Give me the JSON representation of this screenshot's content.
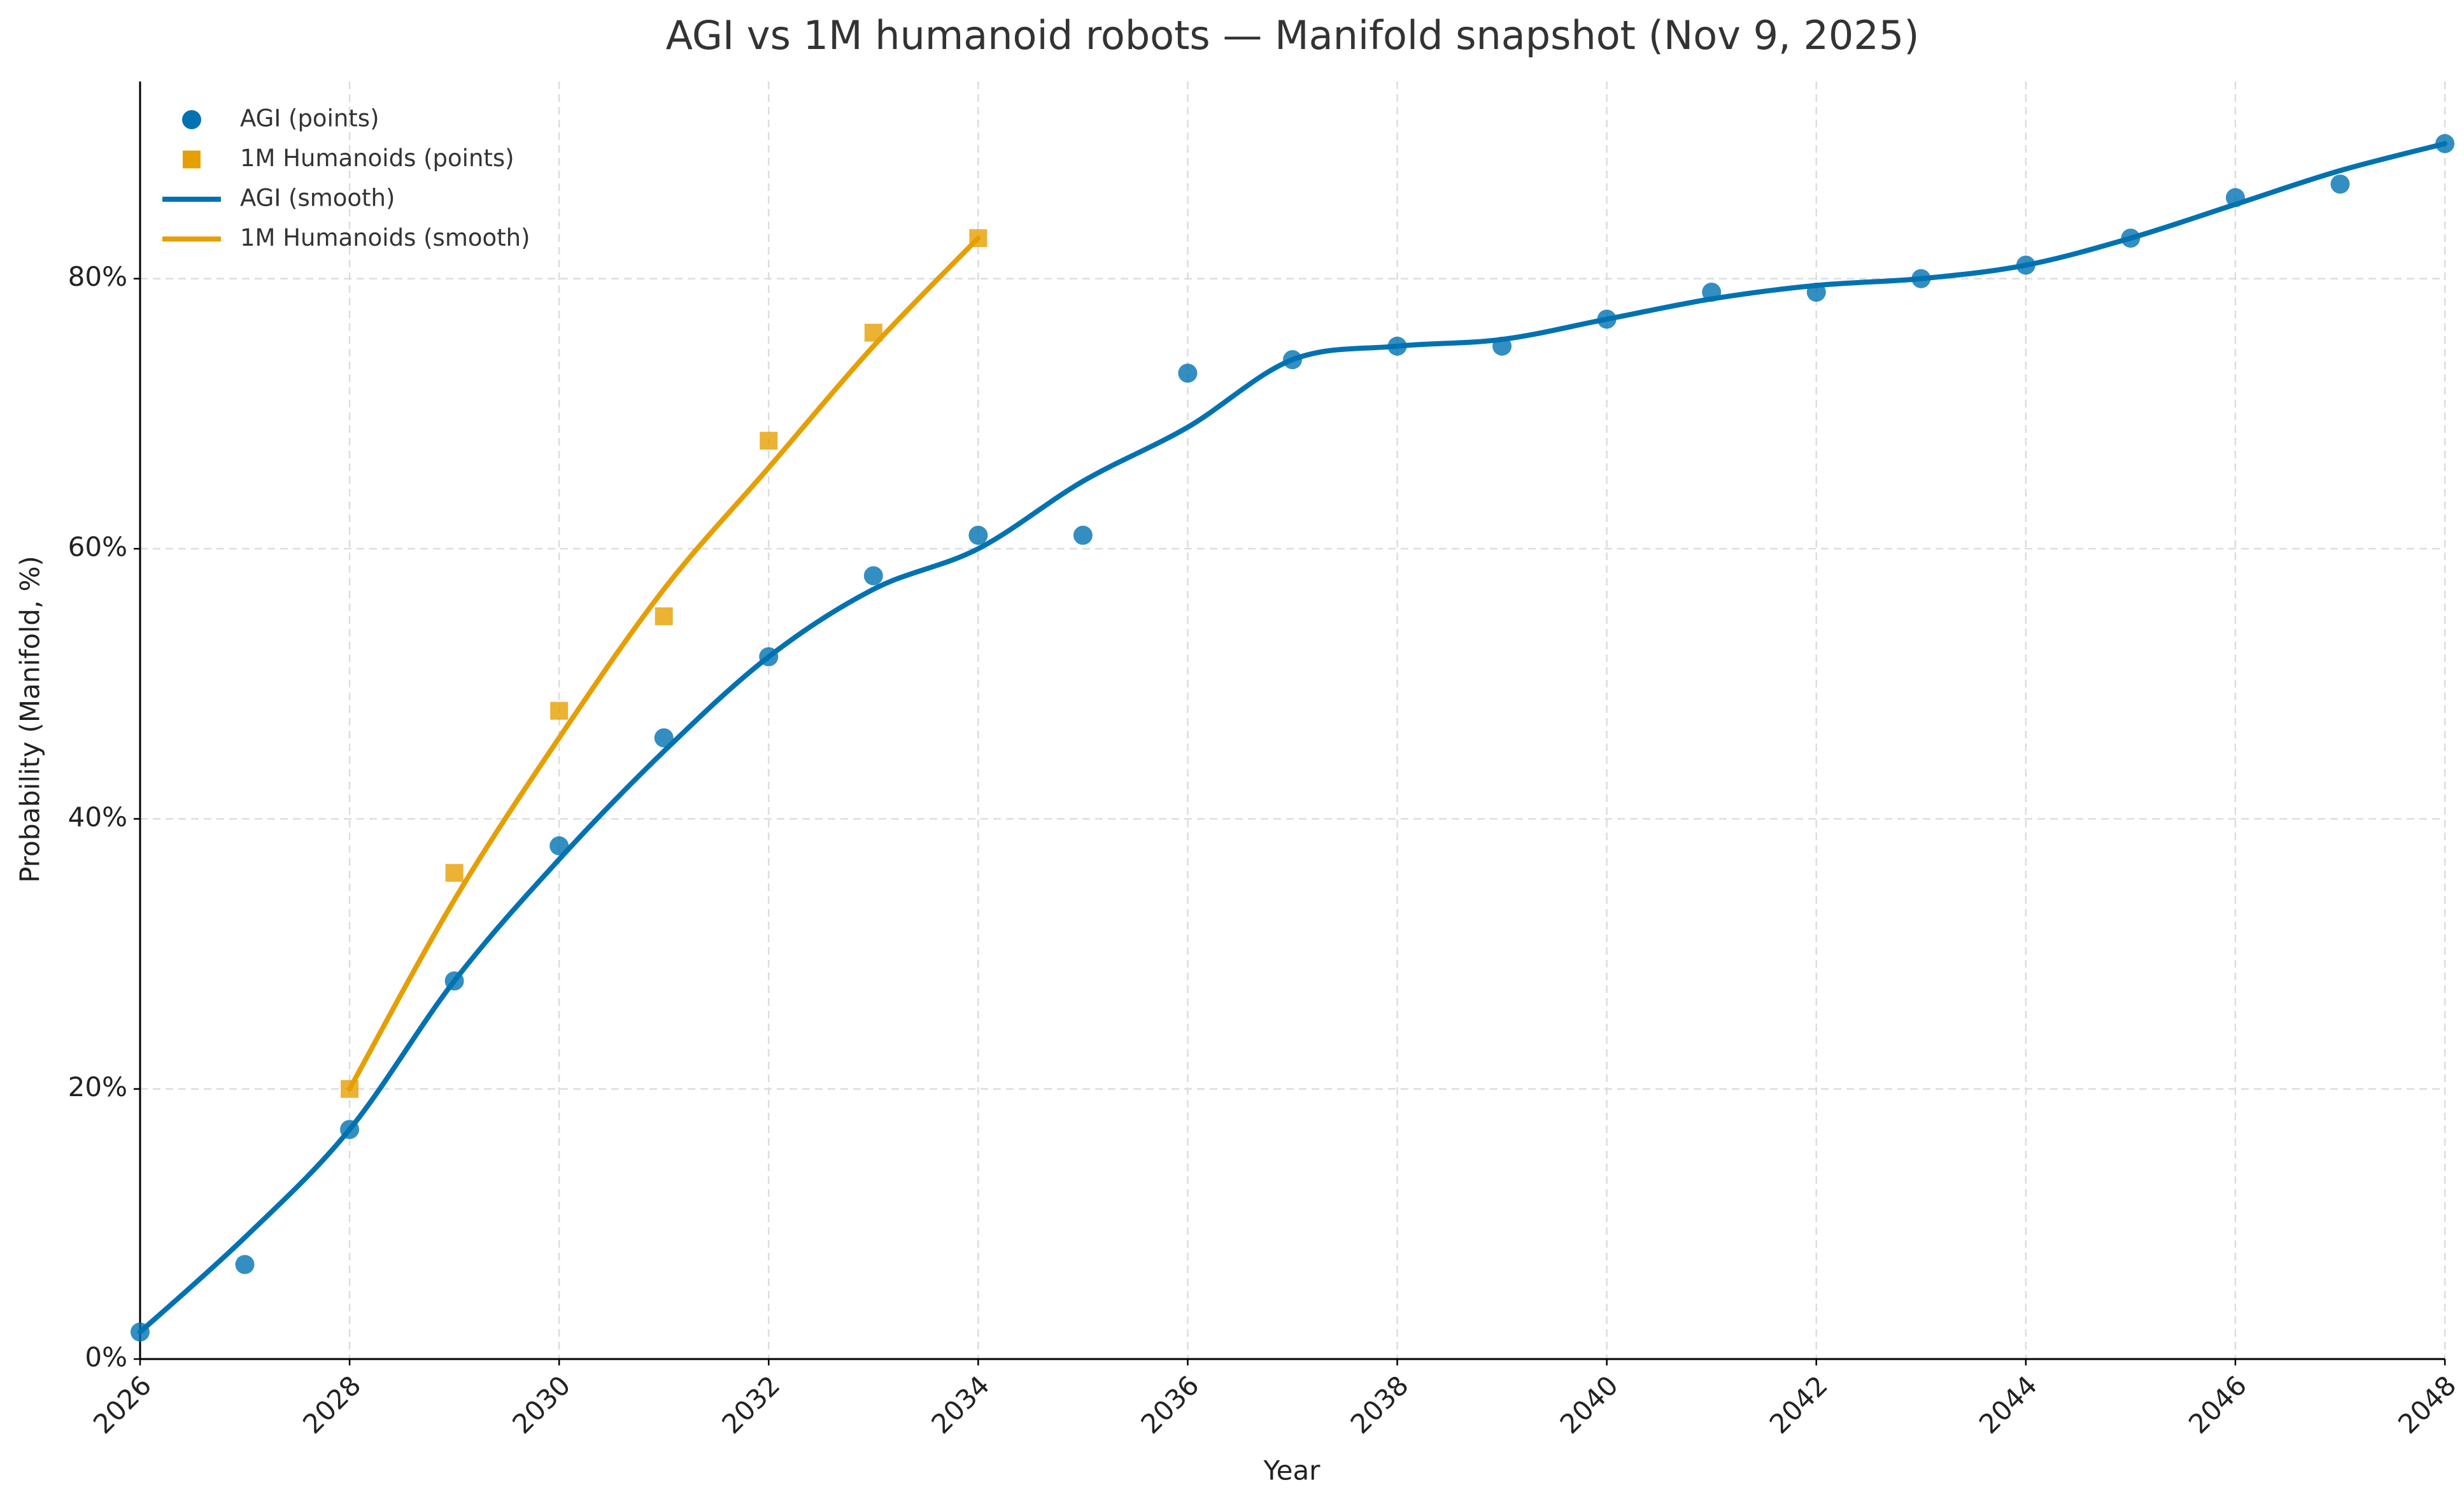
{
  "chart_data": {
    "type": "line",
    "title": "AGI vs 1M humanoid robots — Manifold snapshot (Nov 9, 2025)",
    "x_label": "Year",
    "y_label": "Probability (Manifold, %)",
    "xlim": [
      2026,
      2048
    ],
    "ylim": [
      0,
      94.6
    ],
    "xticks": [
      2026,
      2028,
      2030,
      2032,
      2034,
      2036,
      2038,
      2040,
      2042,
      2044,
      2046,
      2048
    ],
    "yticks": [
      {
        "value": 0,
        "label": "0%"
      },
      {
        "value": 20,
        "label": "20%"
      },
      {
        "value": 40,
        "label": "40%"
      },
      {
        "value": 60,
        "label": "60%"
      },
      {
        "value": 80,
        "label": "80%"
      }
    ],
    "grid": true,
    "legend": "upper left",
    "series": [
      {
        "name": "AGI (points)",
        "color": "#0072b2",
        "style": "markers",
        "marker": "circle",
        "x": [
          2026,
          2027,
          2028,
          2029,
          2030,
          2031,
          2032,
          2033,
          2034,
          2035,
          2036,
          2037,
          2038,
          2039,
          2040,
          2041,
          2042,
          2043,
          2044,
          2045,
          2046,
          2047,
          2048
        ],
        "values": [
          2,
          7,
          17,
          28,
          38,
          46,
          52,
          58,
          61,
          61,
          73,
          74,
          75,
          75,
          77,
          79,
          79,
          80,
          81,
          83,
          86,
          87,
          90
        ]
      },
      {
        "name": "1M Humanoids (points)",
        "color": "#e69f00",
        "style": "markers",
        "marker": "square",
        "x": [
          2028,
          2029,
          2030,
          2031,
          2032,
          2033,
          2034
        ],
        "values": [
          20,
          36,
          48,
          55,
          68,
          76,
          83
        ]
      },
      {
        "name": "AGI (smooth)",
        "color": "#0072b2",
        "style": "line",
        "x": [
          2026,
          2027,
          2028,
          2029,
          2030,
          2031,
          2032,
          2033,
          2034,
          2035,
          2036,
          2037,
          2038,
          2039,
          2040,
          2041,
          2042,
          2043,
          2044,
          2045,
          2046,
          2047,
          2048
        ],
        "values": [
          2,
          9,
          17,
          28,
          37,
          45,
          52,
          57,
          60,
          65,
          69,
          74,
          75,
          75.5,
          77,
          78.5,
          79.5,
          80,
          81,
          83,
          85.5,
          88,
          90
        ]
      },
      {
        "name": "1M Humanoids (smooth)",
        "color": "#e69f00",
        "style": "line",
        "x": [
          2028,
          2029,
          2030,
          2031,
          2032,
          2033,
          2034
        ],
        "values": [
          20,
          34,
          46,
          57,
          66,
          75,
          83
        ]
      }
    ]
  }
}
